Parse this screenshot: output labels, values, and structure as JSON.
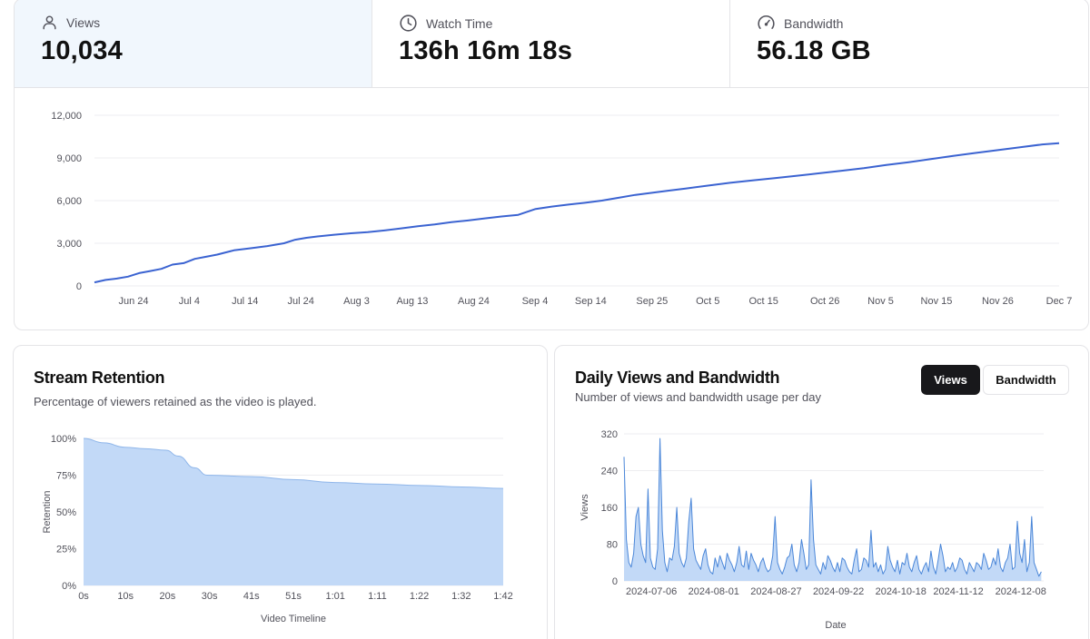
{
  "stats": {
    "views": {
      "label": "Views",
      "value": "10,034",
      "icon": "user-icon"
    },
    "watch_time": {
      "label": "Watch Time",
      "value": "136h 16m 18s",
      "icon": "clock-icon"
    },
    "bandwidth": {
      "label": "Bandwidth",
      "value": "56.18 GB",
      "icon": "gauge-icon"
    }
  },
  "colors": {
    "accent": "#3b63d1",
    "fill": "#c2d9f7",
    "fill_stroke": "#4a86d8",
    "active_bg": "#f1f7fd"
  },
  "chart_data": [
    {
      "type": "line",
      "title": "",
      "xlabel": "",
      "ylabel": "",
      "ylim": [
        0,
        12000
      ],
      "yticks": [
        "0",
        "3,000",
        "6,000",
        "9,000",
        "12,000"
      ],
      "ytick_values": [
        0,
        3000,
        6000,
        9000,
        12000
      ],
      "xticks": [
        "Jun 24",
        "Jul 4",
        "Jul 14",
        "Jul 24",
        "Aug 3",
        "Aug 13",
        "Aug 24",
        "Sep 4",
        "Sep 14",
        "Sep 25",
        "Oct 5",
        "Oct 15",
        "Oct 26",
        "Nov 5",
        "Nov 15",
        "Nov 26",
        "Dec 7"
      ],
      "xtick_days": [
        7,
        17,
        27,
        37,
        47,
        57,
        68,
        79,
        89,
        100,
        110,
        120,
        131,
        141,
        151,
        162,
        173
      ],
      "x_range": [
        0,
        173
      ],
      "series": [
        {
          "name": "Cumulative Views",
          "x": [
            0,
            2,
            4,
            6,
            8,
            10,
            12,
            14,
            16,
            18,
            20,
            22,
            25,
            28,
            31,
            34,
            36,
            38,
            40,
            43,
            46,
            49,
            52,
            55,
            58,
            61,
            64,
            67,
            70,
            73,
            76,
            79,
            82,
            85,
            88,
            91,
            94,
            97,
            100,
            103,
            106,
            110,
            114,
            118,
            122,
            126,
            130,
            134,
            138,
            142,
            146,
            150,
            154,
            158,
            162,
            166,
            170,
            173
          ],
          "values": [
            250,
            420,
            520,
            650,
            900,
            1050,
            1200,
            1500,
            1600,
            1900,
            2050,
            2200,
            2500,
            2650,
            2800,
            3000,
            3250,
            3380,
            3480,
            3600,
            3700,
            3780,
            3900,
            4050,
            4200,
            4320,
            4480,
            4600,
            4750,
            4880,
            5000,
            5400,
            5580,
            5720,
            5850,
            6000,
            6200,
            6400,
            6550,
            6700,
            6850,
            7050,
            7250,
            7420,
            7580,
            7750,
            7920,
            8100,
            8280,
            8500,
            8700,
            8920,
            9150,
            9350,
            9550,
            9750,
            9950,
            10034
          ]
        }
      ]
    },
    {
      "type": "area",
      "title": "Stream Retention",
      "subtitle": "Percentage of viewers retained as the video is played.",
      "xlabel": "Video Timeline",
      "ylabel": "Retention",
      "ylim": [
        0,
        100
      ],
      "yticks": [
        "0%",
        "25%",
        "50%",
        "75%",
        "100%"
      ],
      "ytick_values": [
        0,
        25,
        50,
        75,
        100
      ],
      "xticks": [
        "0s",
        "10s",
        "20s",
        "30s",
        "41s",
        "51s",
        "1:01",
        "1:11",
        "1:22",
        "1:32",
        "1:42"
      ],
      "x_range": [
        0,
        102
      ],
      "series": [
        {
          "name": "Retention",
          "x": [
            0,
            5,
            10,
            15,
            20,
            23,
            27,
            30,
            41,
            51,
            61,
            71,
            82,
            92,
            102
          ],
          "values": [
            100,
            97,
            94,
            93,
            92,
            88,
            80,
            75,
            74,
            72,
            70,
            69,
            68,
            67,
            66
          ]
        }
      ]
    },
    {
      "type": "area",
      "title": "Daily Views and Bandwidth",
      "subtitle": "Number of views and bandwidth usage per day",
      "xlabel": "Date",
      "ylabel": "Views",
      "ylim": [
        0,
        320
      ],
      "yticks": [
        "0",
        "80",
        "160",
        "240",
        "320"
      ],
      "ytick_values": [
        0,
        80,
        160,
        240,
        320
      ],
      "xticks": [
        "2024-07-06",
        "2024-08-01",
        "2024-08-27",
        "2024-09-22",
        "2024-10-18",
        "2024-11-12",
        "2024-12-08"
      ],
      "xtick_days": [
        19,
        45,
        71,
        97,
        123,
        147,
        173
      ],
      "x_range": [
        0,
        175
      ],
      "series": [
        {
          "name": "Views",
          "values": [
            270,
            90,
            40,
            30,
            60,
            140,
            160,
            80,
            55,
            40,
            200,
            50,
            30,
            25,
            70,
            310,
            110,
            40,
            20,
            50,
            45,
            75,
            160,
            60,
            40,
            30,
            50,
            130,
            180,
            70,
            45,
            35,
            25,
            55,
            70,
            35,
            20,
            15,
            50,
            30,
            55,
            40,
            25,
            60,
            45,
            35,
            20,
            40,
            75,
            35,
            30,
            65,
            25,
            60,
            45,
            35,
            20,
            40,
            50,
            30,
            20,
            25,
            55,
            140,
            40,
            25,
            15,
            30,
            50,
            55,
            80,
            35,
            20,
            40,
            90,
            60,
            25,
            35,
            220,
            90,
            35,
            25,
            15,
            40,
            25,
            55,
            45,
            30,
            20,
            40,
            20,
            50,
            45,
            30,
            20,
            15,
            45,
            70,
            20,
            25,
            50,
            45,
            30,
            110,
            30,
            40,
            20,
            35,
            15,
            25,
            75,
            45,
            30,
            20,
            45,
            15,
            40,
            35,
            60,
            30,
            20,
            40,
            55,
            25,
            15,
            30,
            40,
            20,
            65,
            30,
            15,
            45,
            80,
            55,
            20,
            30,
            25,
            40,
            20,
            30,
            50,
            45,
            25,
            15,
            40,
            30,
            20,
            40,
            35,
            25,
            60,
            45,
            25,
            30,
            50,
            35,
            70,
            30,
            20,
            40,
            50,
            80,
            25,
            30,
            130,
            60,
            40,
            90,
            20,
            40,
            140,
            40,
            25,
            10,
            20
          ]
        }
      ]
    }
  ],
  "retention": {
    "title": "Stream Retention",
    "subtitle": "Percentage of viewers retained as the video is played."
  },
  "daily": {
    "title": "Daily Views and Bandwidth",
    "subtitle": "Number of views and bandwidth usage per day",
    "toggle_views": "Views",
    "toggle_bandwidth": "Bandwidth"
  }
}
